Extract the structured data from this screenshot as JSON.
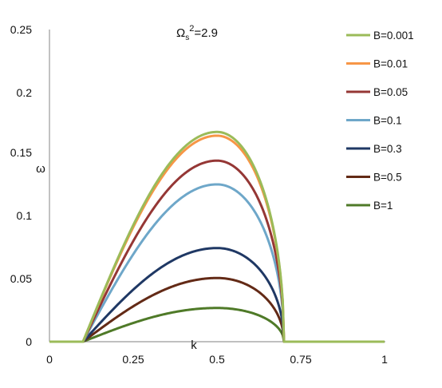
{
  "chart_data": {
    "type": "line",
    "title": "Ωs²=2.9",
    "title_main": "Ω",
    "title_sub": "s",
    "title_sup": "2",
    "title_rest": "=2.9",
    "xlabel": "k",
    "ylabel": "ω",
    "xlim": [
      0,
      1
    ],
    "ylim": [
      0,
      0.25
    ],
    "x_ticks": [
      "0",
      "0.25",
      "0.5",
      "0.75",
      "1"
    ],
    "x_tick_values": [
      0,
      0.25,
      0.5,
      0.75,
      1
    ],
    "y_ticks": [
      "0",
      "0.05",
      "0.1",
      "0.15",
      "0.2",
      "0.25"
    ],
    "y_tick_values": [
      0,
      0.05,
      0.1,
      0.15,
      0.2,
      0.25
    ],
    "grid": false,
    "legend_position": "right",
    "curve_x_start": 0.1,
    "curve_x_end": 0.7,
    "x_peak": 0.5,
    "series": [
      {
        "name": "B=0.001",
        "color": "#9bbb59",
        "peak": 0.168
      },
      {
        "name": "B=0.01",
        "color": "#f79646",
        "peak": 0.165
      },
      {
        "name": "B=0.05",
        "color": "#953735",
        "peak": 0.145
      },
      {
        "name": "B=0.1",
        "color": "#6ea7c9",
        "peak": 0.126
      },
      {
        "name": "B=0.3",
        "color": "#1f3864",
        "peak": 0.075
      },
      {
        "name": "B=0.5",
        "color": "#632a16",
        "peak": 0.051
      },
      {
        "name": "B=1",
        "color": "#4f7a28",
        "peak": 0.027
      }
    ]
  }
}
